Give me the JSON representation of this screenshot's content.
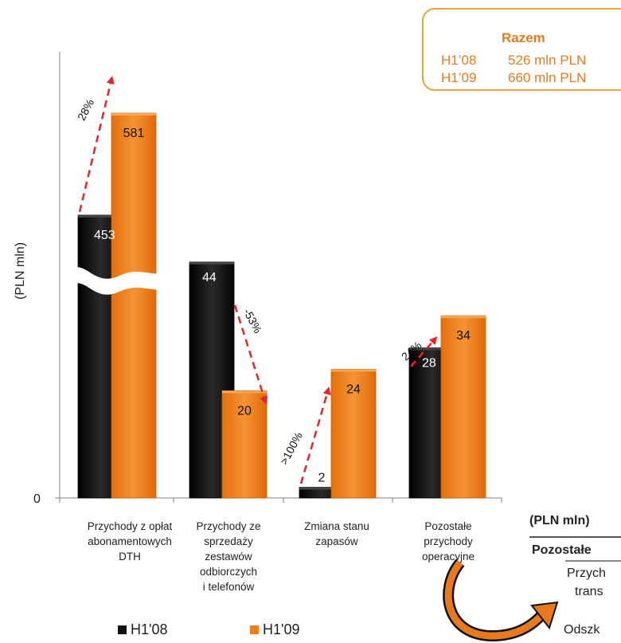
{
  "summary": {
    "title": "Razem",
    "rows": [
      {
        "label": "H1’08",
        "value": "526 mln PLN"
      },
      {
        "label": "H1’09",
        "value": "660 mln PLN"
      }
    ]
  },
  "legend": {
    "h108": "H1'08",
    "h109": "H1'09"
  },
  "side_panel": {
    "unit": "(PLN mln)",
    "heading": "Pozostałe",
    "line1": "Przych",
    "line2": "trans",
    "line3": "Odszk"
  },
  "chart_data": {
    "type": "bar",
    "ylabel": "(PLN mln)",
    "y_zero_label": "0",
    "axis_break": true,
    "categories": [
      [
        "Przychody z opłat",
        "abonamentowych",
        "DTH"
      ],
      [
        "Przychody ze",
        "sprzedaży",
        "zestawów",
        "odbiorczych",
        "i telefonów"
      ],
      [
        "Zmiana stanu",
        "zapasów"
      ],
      [
        "Pozostałe",
        "przychody",
        "operacyjne"
      ]
    ],
    "series": [
      {
        "name": "H1'08",
        "values": [
          453,
          44,
          2,
          28
        ],
        "color": "#111111"
      },
      {
        "name": "H1'09",
        "values": [
          581,
          20,
          24,
          34
        ],
        "color": "#ef7d18"
      }
    ],
    "changes": [
      "28%",
      "-53%",
      ">100%",
      "24%"
    ],
    "arrow_color": "#e8242a"
  }
}
